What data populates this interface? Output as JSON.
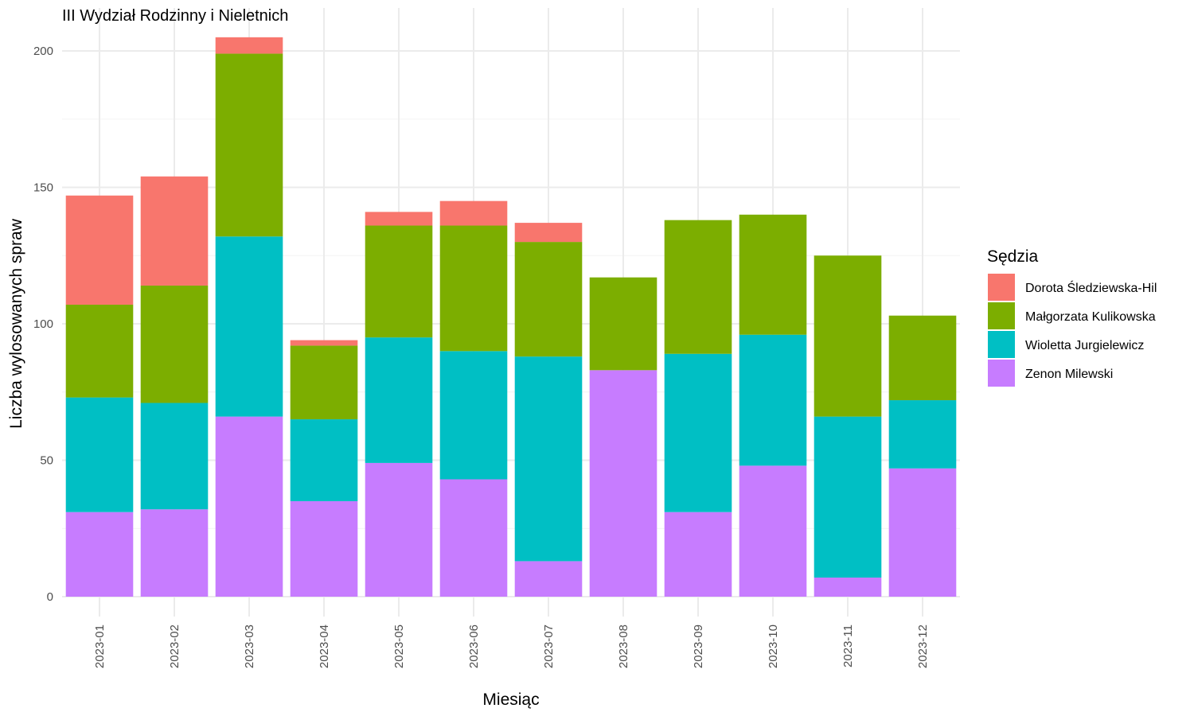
{
  "chart_data": {
    "type": "bar",
    "stacked": true,
    "title": "III Wydział Rodzinny i Nieletnich",
    "xlabel": "Miesiąc",
    "ylabel": "Liczba wylosowanych spraw",
    "ylim": [
      0,
      210
    ],
    "y_ticks": [
      0,
      50,
      100,
      150,
      200
    ],
    "grid": true,
    "legend": {
      "title": "Sędzia",
      "position": "right"
    },
    "categories": [
      "2023-01",
      "2023-02",
      "2023-03",
      "2023-04",
      "2023-05",
      "2023-06",
      "2023-07",
      "2023-08",
      "2023-09",
      "2023-10",
      "2023-11",
      "2023-12"
    ],
    "series": [
      {
        "name": "Zenon Milewski",
        "color": "#C77CFF",
        "values": [
          31,
          32,
          66,
          35,
          49,
          43,
          13,
          83,
          31,
          48,
          7,
          47
        ]
      },
      {
        "name": "Wioletta Jurgielewicz",
        "color": "#00BFC4",
        "values": [
          42,
          39,
          66,
          30,
          46,
          47,
          75,
          0,
          58,
          48,
          59,
          25
        ]
      },
      {
        "name": "Małgorzata Kulikowska",
        "color": "#7CAE00",
        "values": [
          34,
          43,
          67,
          27,
          41,
          46,
          42,
          34,
          49,
          44,
          59,
          31
        ]
      },
      {
        "name": "Dorota Śledziewska-Hil",
        "color": "#F8766D",
        "values": [
          40,
          40,
          6,
          2,
          5,
          9,
          7,
          0,
          0,
          0,
          0,
          0
        ]
      }
    ],
    "legend_order": [
      "Dorota Śledziewska-Hil",
      "Małgorzata Kulikowska",
      "Wioletta Jurgielewicz",
      "Zenon Milewski"
    ]
  }
}
